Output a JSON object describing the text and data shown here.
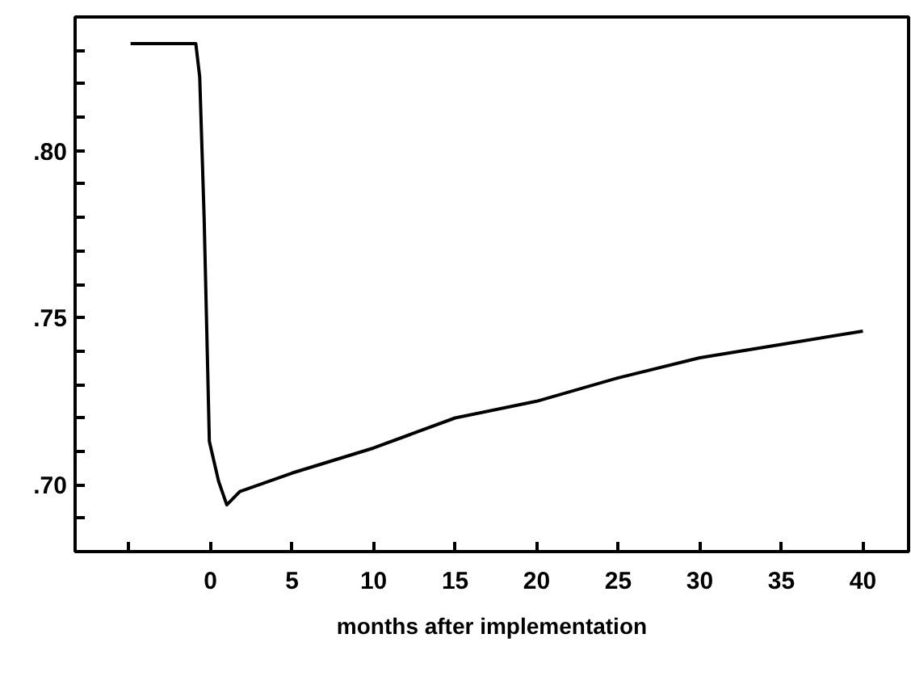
{
  "chart_data": {
    "type": "line",
    "xlabel": "months after implementation",
    "x": [
      -4.9,
      -0.9,
      -0.66,
      -0.39,
      -0.16,
      -0.07,
      0.5,
      1.0,
      1.8,
      5,
      10,
      15,
      20,
      25,
      30,
      35,
      40
    ],
    "series": [
      {
        "color": "#000000",
        "values": [
          0.832,
          0.832,
          0.822,
          0.78,
          0.732,
          0.713,
          0.701,
          0.694,
          0.698,
          0.7035,
          0.711,
          0.72,
          0.725,
          0.732,
          0.738,
          0.742,
          0.746
        ]
      }
    ],
    "xlim": [
      -8.3,
      42.8
    ],
    "ylim": [
      0.68,
      0.84
    ],
    "xticks": [
      {
        "value": -5,
        "label": null
      },
      0,
      5,
      10,
      15,
      20,
      25,
      30,
      35,
      40
    ],
    "yticks": [
      {
        "value": 0.69,
        "label": null
      },
      {
        "value": 0.7,
        "label": ".70"
      },
      {
        "value": 0.71,
        "label": null
      },
      {
        "value": 0.72,
        "label": null
      },
      {
        "value": 0.73,
        "label": null
      },
      {
        "value": 0.74,
        "label": null
      },
      {
        "value": 0.75,
        "label": ".75"
      },
      {
        "value": 0.76,
        "label": null
      },
      {
        "value": 0.77,
        "label": null
      },
      {
        "value": 0.78,
        "label": null
      },
      {
        "value": 0.79,
        "label": null
      },
      {
        "value": 0.8,
        "label": ".80"
      },
      {
        "value": 0.81,
        "label": null
      },
      {
        "value": 0.82,
        "label": null
      },
      {
        "value": 0.83,
        "label": null
      }
    ],
    "grid": false,
    "marker": "none",
    "line_style": "solid"
  }
}
